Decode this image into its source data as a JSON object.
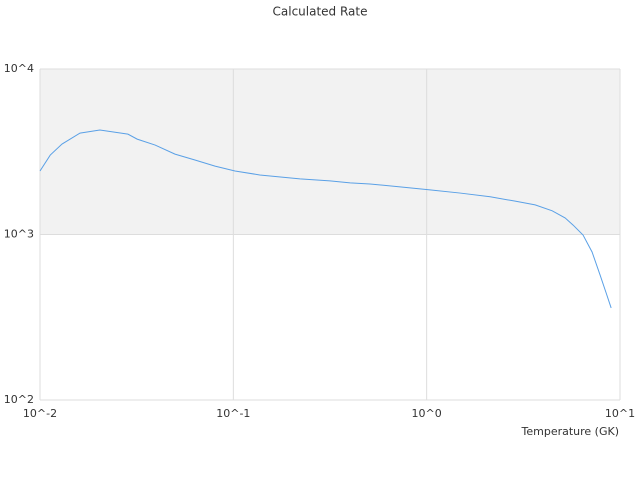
{
  "chart_data": {
    "type": "line",
    "title": "Calculated Rate",
    "x_label": "Temperature (GK)",
    "x": [
      0.01,
      0.0113,
      0.013,
      0.0161,
      0.0204,
      0.0285,
      0.0318,
      0.0394,
      0.0499,
      0.0633,
      0.0804,
      0.102,
      0.137,
      0.221,
      0.316,
      0.402,
      0.509,
      0.728,
      1.04,
      1.49,
      2.13,
      2.87,
      3.64,
      4.46,
      5.2,
      5.72,
      6.44,
      7.17,
      7.89,
      8.48,
      9.0
    ],
    "series": [
      {
        "color": "#5aa0e6",
        "values": [
          2420,
          3020,
          3520,
          4100,
          4280,
          4040,
          3770,
          3470,
          3060,
          2820,
          2590,
          2420,
          2290,
          2170,
          2110,
          2050,
          2020,
          1940,
          1860,
          1780,
          1690,
          1590,
          1510,
          1390,
          1260,
          1140,
          993,
          784,
          569,
          443,
          360
        ]
      }
    ],
    "xscale": "log",
    "yscale": "log",
    "xlim": [
      0.01,
      10
    ],
    "ylim": [
      100,
      10000
    ],
    "xticks": [
      {
        "value": 0.01,
        "label": "10^-2"
      },
      {
        "value": 0.1,
        "label": "10^-1"
      },
      {
        "value": 1,
        "label": "10^0"
      },
      {
        "value": 10,
        "label": "10^1"
      }
    ],
    "yticks": [
      {
        "value": 100,
        "label": "10^2"
      },
      {
        "value": 1000,
        "label": "10^3"
      },
      {
        "value": 10000,
        "label": "10^4"
      }
    ],
    "grid": true
  }
}
